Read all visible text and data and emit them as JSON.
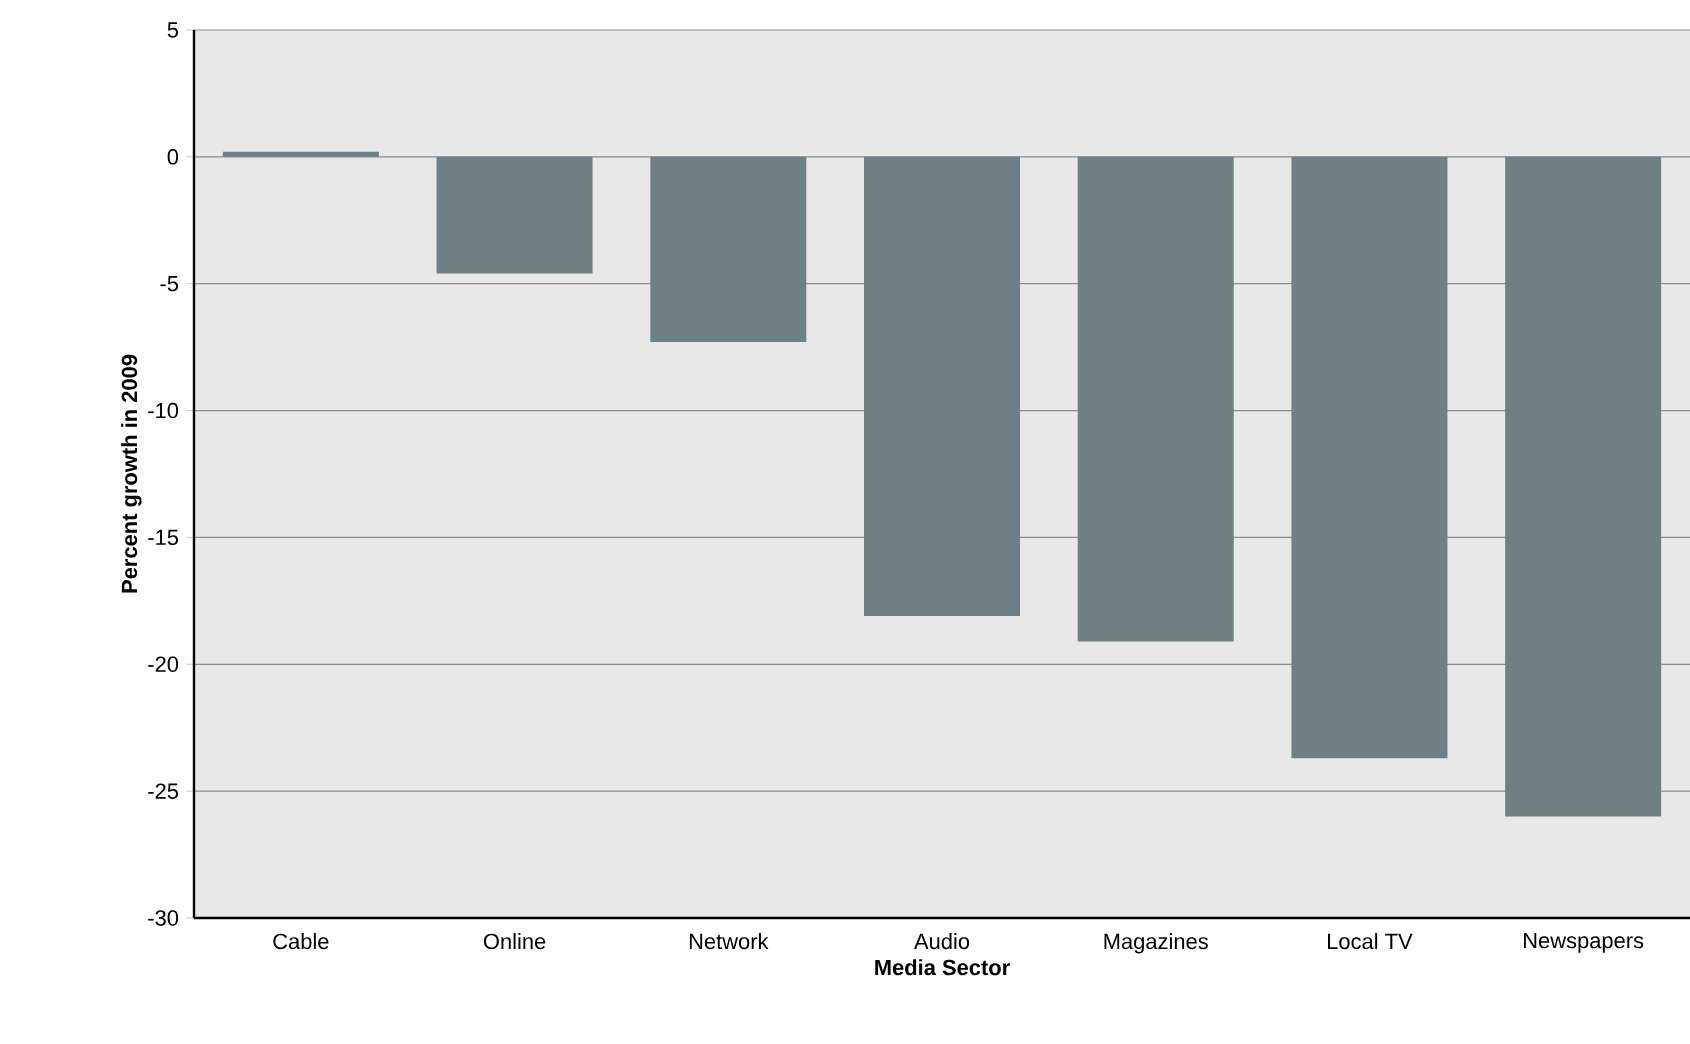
{
  "chart_data": {
    "type": "bar",
    "xlabel": "Media Sector",
    "ylabel": "Percent growth in 2009",
    "categories": [
      "Cable",
      "Online",
      "Network",
      "Audio",
      "Magazines",
      "Local TV",
      "Newspapers"
    ],
    "values": [
      0.2,
      -4.6,
      -7.3,
      -18.1,
      -19.1,
      -23.7,
      -26.0
    ],
    "color": "#6e7f86",
    "ylim": [
      -30,
      5
    ],
    "yticks": [
      -30,
      -25,
      -20,
      -15,
      -10,
      -5,
      0,
      5
    ],
    "grid": "y"
  }
}
